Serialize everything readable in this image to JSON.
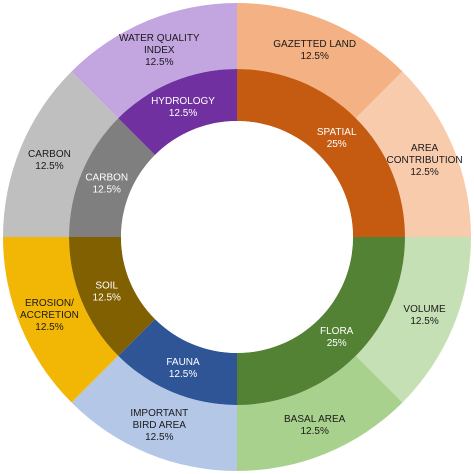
{
  "chart_data": {
    "type": "pie",
    "subtype": "sunburst",
    "title": "",
    "inner_ring": [
      {
        "label": [
          "SPATIAL",
          "25%"
        ],
        "value": 25,
        "color": "#C55A11",
        "text_color": "#ffffff"
      },
      {
        "label": [
          "FLORA",
          "25%"
        ],
        "value": 25,
        "color": "#548235",
        "text_color": "#ffffff"
      },
      {
        "label": [
          "FAUNA",
          "12.5%"
        ],
        "value": 12.5,
        "color": "#2F5597",
        "text_color": "#ffffff"
      },
      {
        "label": [
          "SOIL",
          "12.5%"
        ],
        "value": 12.5,
        "color": "#806000",
        "text_color": "#ffffff"
      },
      {
        "label": [
          "CARBON",
          "12.5%"
        ],
        "value": 12.5,
        "color": "#7F7F7F",
        "text_color": "#ffffff"
      },
      {
        "label": [
          "HYDROLOGY",
          "12.5%"
        ],
        "value": 12.5,
        "color": "#7030A0",
        "text_color": "#ffffff"
      }
    ],
    "outer_ring": [
      {
        "label": [
          "GAZETTED LAND",
          "12.5%"
        ],
        "value": 12.5,
        "color": "#F4B183",
        "text_color": "#1a1a1a"
      },
      {
        "label": [
          "AREA",
          "CONTRIBUTION",
          "12.5%"
        ],
        "value": 12.5,
        "color": "#F8CBAD",
        "text_color": "#1a1a1a"
      },
      {
        "label": [
          "VOLUME",
          "12.5%"
        ],
        "value": 12.5,
        "color": "#C5E0B4",
        "text_color": "#1a1a1a"
      },
      {
        "label": [
          "BASAL AREA",
          "12.5%"
        ],
        "value": 12.5,
        "color": "#A9D18E",
        "text_color": "#1a1a1a"
      },
      {
        "label": [
          "IMPORTANT",
          "BIRD AREA",
          "12.5%"
        ],
        "value": 12.5,
        "color": "#B4C7E7",
        "text_color": "#1a1a1a"
      },
      {
        "label": [
          "EROSION/",
          "ACCRETION",
          "12.5%"
        ],
        "value": 12.5,
        "color": "#F2B705",
        "text_color": "#1a1a1a"
      },
      {
        "label": [
          "CARBON",
          "12.5%"
        ],
        "value": 12.5,
        "color": "#BFBFBF",
        "text_color": "#1a1a1a"
      },
      {
        "label": [
          "WATER QUALITY",
          "INDEX",
          "12.5%"
        ],
        "value": 12.5,
        "color": "#C3A5E0",
        "text_color": "#1a1a1a"
      }
    ]
  }
}
